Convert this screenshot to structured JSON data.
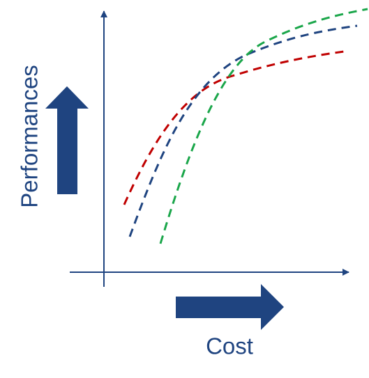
{
  "labels": {
    "y_axis": "Performances",
    "x_axis": "Cost"
  },
  "colors": {
    "axis": "#1f4480",
    "arrow": "#1f4480",
    "label": "#1f4480",
    "curve_red": "#c00000",
    "curve_blue": "#1f4480",
    "curve_green": "#1aa64a"
  },
  "curves": [
    {
      "color_key": "curve_red",
      "style": "dashed"
    },
    {
      "color_key": "curve_blue",
      "style": "dashed"
    },
    {
      "color_key": "curve_green",
      "style": "dashed"
    }
  ]
}
